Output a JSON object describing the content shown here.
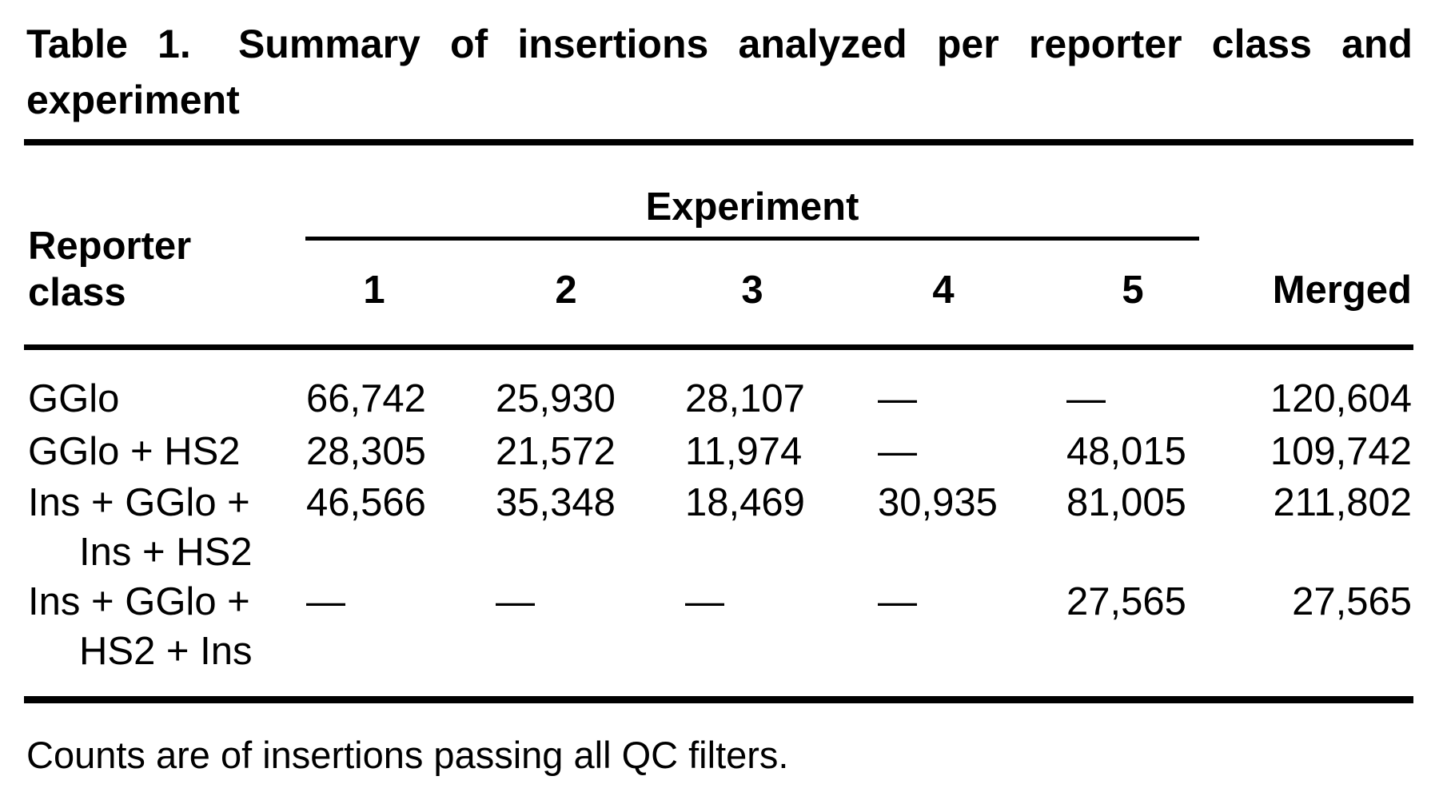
{
  "colors": {
    "background": "#ffffff",
    "text": "#000000",
    "rule": "#000000"
  },
  "title": {
    "label": "Table 1.",
    "line1": "Summary of insertions analyzed per reporter class and",
    "line2": "experiment"
  },
  "table": {
    "spanner_label": "Experiment",
    "row_header_line1": "Reporter",
    "row_header_line2": "class",
    "experiment_columns": [
      "1",
      "2",
      "3",
      "4",
      "5"
    ],
    "merged_column_label": "Merged",
    "rows": [
      {
        "label_line1": "GGlo",
        "label_line2": "",
        "experiments": [
          "66,742",
          "25,930",
          "28,107",
          "—",
          "—"
        ],
        "merged": "120,604"
      },
      {
        "label_line1": "GGlo + HS2",
        "label_line2": "",
        "experiments": [
          "28,305",
          "21,572",
          "11,974",
          "—",
          "48,015"
        ],
        "merged": "109,742"
      },
      {
        "label_line1": "Ins + GGlo +",
        "label_line2": "Ins + HS2",
        "experiments": [
          "46,566",
          "35,348",
          "18,469",
          "30,935",
          "81,005"
        ],
        "merged": "211,802"
      },
      {
        "label_line1": "Ins + GGlo +",
        "label_line2": "HS2 + Ins",
        "experiments": [
          "—",
          "—",
          "—",
          "—",
          "27,565"
        ],
        "merged": "27,565"
      }
    ]
  },
  "footnote": "Counts are of insertions passing all QC filters."
}
